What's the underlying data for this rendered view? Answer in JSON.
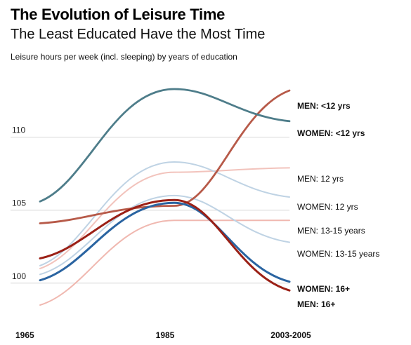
{
  "header": {
    "title": "The Evolution of Leisure Time",
    "subtitle": "The Least Educated Have the Most Time",
    "caption": "Leisure hours per week (incl. sleeping) by years of education"
  },
  "chart_data": {
    "type": "line",
    "title": "The Evolution of Leisure Time",
    "subtitle": "The Least Educated Have the Most Time",
    "ylabel": "Leisure hours per week (incl. sleeping) by years of education",
    "xlabel": "",
    "categories": [
      "1965",
      "1985",
      "2003-2005"
    ],
    "y_ticks": [
      100,
      105,
      110
    ],
    "ylim": [
      97.3,
      114.5
    ],
    "grid": true,
    "series": [
      {
        "name": "MEN: <12 yrs",
        "values": [
          104.1,
          105.3,
          113.2
        ],
        "color": "#b75a49",
        "width": 2.8,
        "bold": true
      },
      {
        "name": "WOMEN: <12 yrs",
        "values": [
          105.6,
          113.3,
          111.1
        ],
        "color": "#4e7d8a",
        "width": 2.8,
        "bold": true
      },
      {
        "name": "MEN: 12 yrs",
        "values": [
          101.0,
          107.6,
          107.9
        ],
        "color": "#f2c3bc",
        "width": 2.0,
        "bold": false
      },
      {
        "name": "WOMEN: 12 yrs",
        "values": [
          101.2,
          108.3,
          105.9
        ],
        "color": "#bfd3e4",
        "width": 2.0,
        "bold": false
      },
      {
        "name": "MEN: 13-15 years",
        "values": [
          98.5,
          104.3,
          104.3
        ],
        "color": "#f0b8b0",
        "width": 2.0,
        "bold": false
      },
      {
        "name": "WOMEN: 13-15 years",
        "values": [
          100.6,
          106.0,
          102.8
        ],
        "color": "#bfd3e4",
        "width": 2.0,
        "bold": false
      },
      {
        "name": "WOMEN: 16+",
        "values": [
          100.2,
          105.5,
          100.1
        ],
        "color": "#2a64a1",
        "width": 3.0,
        "bold": true
      },
      {
        "name": "MEN: 16+",
        "values": [
          101.7,
          105.7,
          99.5
        ],
        "color": "#9b2016",
        "width": 3.0,
        "bold": true
      }
    ]
  }
}
